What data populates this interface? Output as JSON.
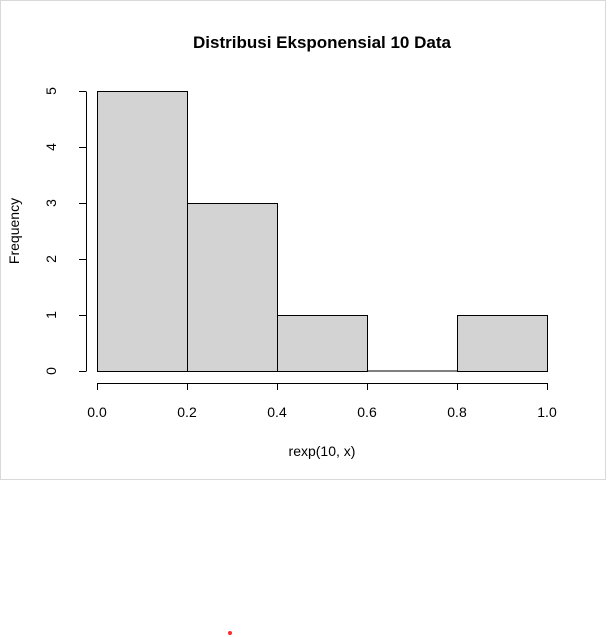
{
  "chart_data": {
    "type": "bar",
    "title": "Distribusi Eksponensial 10 Data",
    "xlabel": "rexp(10, x)",
    "ylabel": "Frequency",
    "bins": [
      {
        "from": 0.0,
        "to": 0.2,
        "count": 5
      },
      {
        "from": 0.2,
        "to": 0.4,
        "count": 3
      },
      {
        "from": 0.4,
        "to": 0.6,
        "count": 1
      },
      {
        "from": 0.6,
        "to": 0.8,
        "count": 0
      },
      {
        "from": 0.8,
        "to": 1.0,
        "count": 1
      }
    ],
    "xlim": [
      0.0,
      1.0
    ],
    "ylim": [
      0,
      5
    ],
    "xticks": [
      "0.0",
      "0.2",
      "0.4",
      "0.6",
      "0.8",
      "1.0"
    ],
    "yticks": [
      "0",
      "1",
      "2",
      "3",
      "4",
      "5"
    ],
    "grid": false,
    "bar_color": "#d3d3d3",
    "edge_color": "#000000"
  }
}
